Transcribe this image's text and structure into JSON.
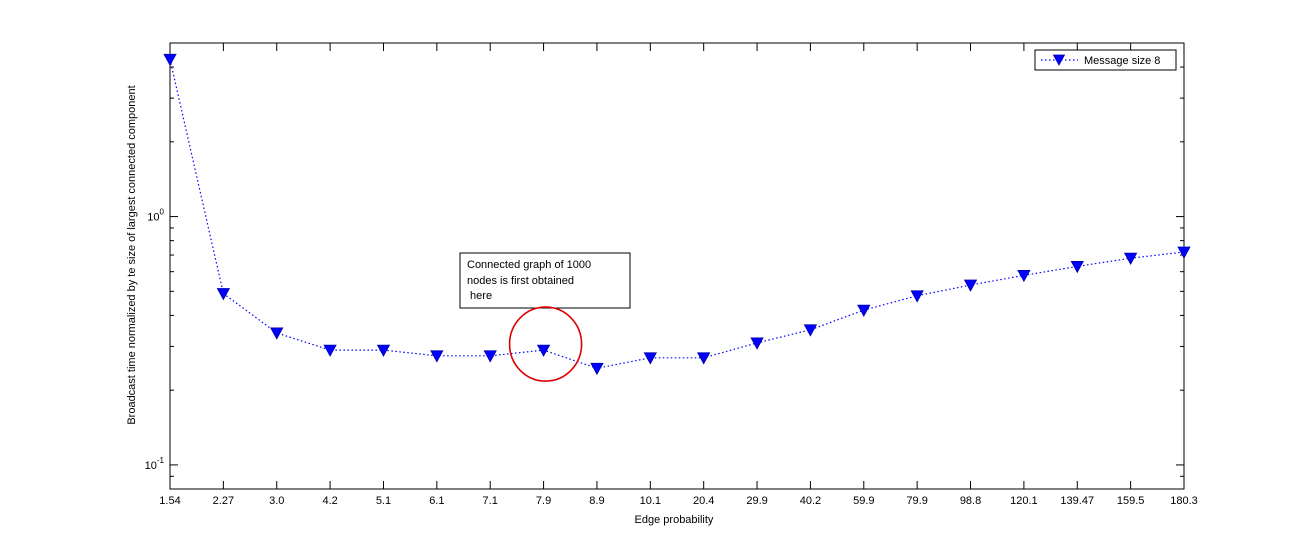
{
  "chart_data": {
    "type": "line",
    "title": "",
    "xlabel": "Edge probability",
    "ylabel": "Broadcast time normalized by te size of largest connected component",
    "y_scale": "log",
    "ylim": [
      0.08,
      5.0
    ],
    "y_ticks": [
      {
        "value": 0.1,
        "base": "10",
        "exp": "-1"
      },
      {
        "value": 1,
        "base": "10",
        "exp": "0"
      }
    ],
    "categories": [
      "1.54",
      "2.27",
      "3.0",
      "4.2",
      "5.1",
      "6.1",
      "7.1",
      "7.9",
      "8.9",
      "10.1",
      "20.4",
      "29.9",
      "40.2",
      "59.9",
      "79.9",
      "98.8",
      "120.1",
      "139.47",
      "159.5",
      "180.3"
    ],
    "series": [
      {
        "name": "Message size 8",
        "color": "#0000ff",
        "line_style": "dotted",
        "marker": "triangle-down",
        "values": [
          4.3,
          0.49,
          0.34,
          0.29,
          0.29,
          0.275,
          0.275,
          0.29,
          0.245,
          0.27,
          0.27,
          0.31,
          0.35,
          0.42,
          0.48,
          0.53,
          0.58,
          0.63,
          0.68,
          0.72
        ]
      }
    ],
    "legend": {
      "position": "top-right",
      "label": "Message size 8"
    },
    "annotation": {
      "lines": [
        "Connected graph of 1000",
        "nodes is first obtained",
        " here"
      ],
      "target_category": "7.9",
      "circle_color": "#dd0000"
    },
    "grid": false
  }
}
